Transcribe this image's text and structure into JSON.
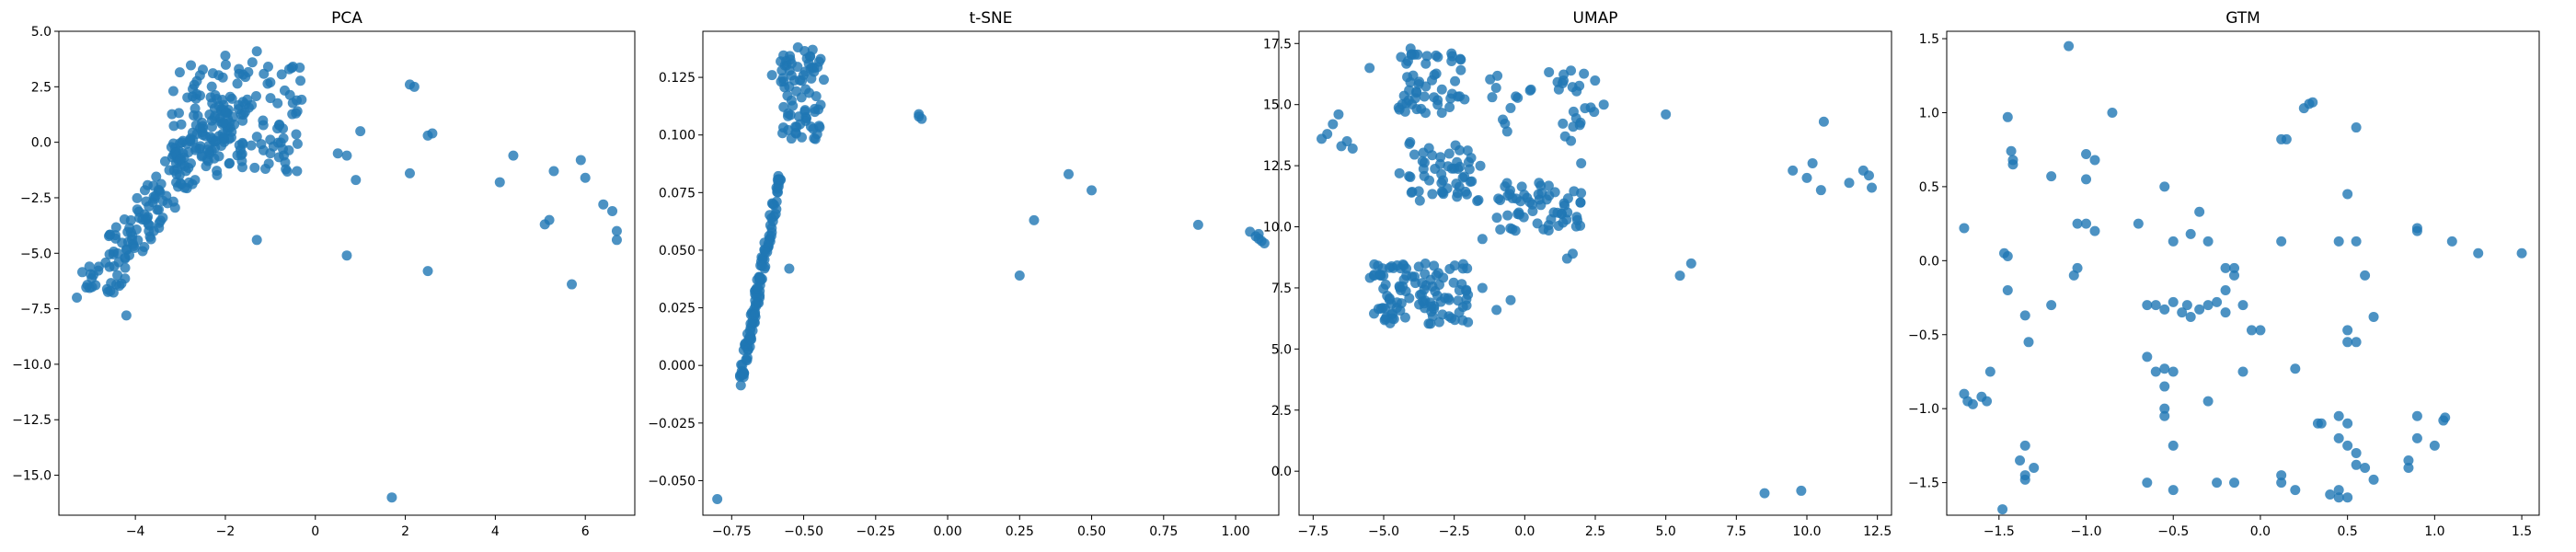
{
  "figure": {
    "background": "#ffffff"
  },
  "chart_data": [
    {
      "type": "scatter",
      "title": "PCA",
      "color": "#1f77b4",
      "xlim": [
        -5.7,
        7.1
      ],
      "ylim": [
        -16.8,
        5.0
      ],
      "xticks": [
        -4,
        -2,
        0,
        2,
        4,
        6
      ],
      "yticks": [
        5.0,
        2.5,
        0.0,
        -2.5,
        -5.0,
        -7.5,
        -10.0,
        -12.5,
        -15.0
      ],
      "yticks_label": [
        "5.0",
        "2.5",
        "0.0",
        "−2.5",
        "−5.0",
        "−7.5",
        "−10.0",
        "−12.5",
        "−15.0"
      ],
      "xticks_label": [
        "−4",
        "−2",
        "0",
        "2",
        "4",
        "6"
      ],
      "clusters": [
        {
          "shape": "band",
          "from": [
            -5.0,
            -6.8
          ],
          "to": [
            -1.8,
            2.0
          ],
          "width": 1.0,
          "n": 190,
          "seed": 11
        },
        {
          "shape": "box",
          "x": [
            -3.2,
            -0.3
          ],
          "y": [
            -1.5,
            3.5
          ],
          "n": 130,
          "seed": 12
        }
      ],
      "points": [
        [
          -2.0,
          3.9
        ],
        [
          -1.3,
          4.1
        ],
        [
          -1.7,
          3.3
        ],
        [
          -1.4,
          3.6
        ],
        [
          -1.0,
          2.7
        ],
        [
          -0.4,
          1.4
        ],
        [
          -0.8,
          0.8
        ],
        [
          0.5,
          -0.5
        ],
        [
          0.7,
          -0.6
        ],
        [
          1.0,
          0.5
        ],
        [
          0.9,
          -1.7
        ],
        [
          2.1,
          2.6
        ],
        [
          2.2,
          2.5
        ],
        [
          2.1,
          -1.4
        ],
        [
          2.5,
          0.3
        ],
        [
          2.6,
          0.4
        ],
        [
          0.7,
          -5.1
        ],
        [
          2.5,
          -5.8
        ],
        [
          -1.3,
          -4.4
        ],
        [
          4.1,
          -1.8
        ],
        [
          4.4,
          -0.6
        ],
        [
          5.1,
          -3.7
        ],
        [
          5.2,
          -3.5
        ],
        [
          5.3,
          -1.3
        ],
        [
          5.9,
          -0.8
        ],
        [
          6.0,
          -1.6
        ],
        [
          5.7,
          -6.4
        ],
        [
          6.4,
          -2.8
        ],
        [
          6.6,
          -3.1
        ],
        [
          6.7,
          -4.0
        ],
        [
          6.7,
          -4.4
        ],
        [
          1.7,
          -16.0
        ],
        [
          -4.2,
          -7.8
        ],
        [
          -5.3,
          -7.0
        ]
      ]
    },
    {
      "type": "scatter",
      "title": "t-SNE",
      "color": "#1f77b4",
      "xlim": [
        -0.85,
        1.15
      ],
      "ylim": [
        -0.065,
        0.145
      ],
      "xticks": [
        -0.75,
        -0.5,
        -0.25,
        0.0,
        0.25,
        0.5,
        0.75,
        1.0
      ],
      "xticks_label": [
        "−0.75",
        "−0.50",
        "−0.25",
        "0.00",
        "0.25",
        "0.50",
        "0.75",
        "1.00"
      ],
      "yticks": [
        0.125,
        0.1,
        0.075,
        0.05,
        0.025,
        0.0,
        -0.025,
        -0.05
      ],
      "yticks_label": [
        "0.125",
        "0.100",
        "0.075",
        "0.050",
        "0.025",
        "0.000",
        "−0.025",
        "−0.050"
      ],
      "clusters": [
        {
          "shape": "band",
          "from": [
            -0.72,
            -0.006
          ],
          "to": [
            -0.58,
            0.082
          ],
          "width": 0.012,
          "n": 120,
          "seed": 21
        },
        {
          "shape": "box",
          "x": [
            -0.58,
            -0.44
          ],
          "y": [
            0.098,
            0.137
          ],
          "n": 75,
          "seed": 22
        }
      ],
      "points": [
        [
          -0.8,
          -0.058
        ],
        [
          -0.55,
          0.042
        ],
        [
          -0.61,
          0.126
        ],
        [
          -0.1,
          0.108
        ],
        [
          -0.09,
          0.107
        ],
        [
          -0.1,
          0.109
        ],
        [
          0.25,
          0.039
        ],
        [
          0.3,
          0.063
        ],
        [
          0.42,
          0.083
        ],
        [
          0.5,
          0.076
        ],
        [
          0.87,
          0.061
        ],
        [
          1.05,
          0.058
        ],
        [
          1.07,
          0.056
        ],
        [
          1.08,
          0.057
        ],
        [
          1.09,
          0.054
        ],
        [
          1.1,
          0.053
        ],
        [
          1.08,
          0.055
        ],
        [
          -0.52,
          0.138
        ],
        [
          -0.43,
          0.124
        ]
      ]
    },
    {
      "type": "scatter",
      "title": "UMAP",
      "color": "#1f77b4",
      "xlim": [
        -8.0,
        13.0
      ],
      "ylim": [
        -1.8,
        18.0
      ],
      "xticks": [
        -7.5,
        -5.0,
        -2.5,
        0.0,
        2.5,
        5.0,
        7.5,
        10.0,
        12.5
      ],
      "xticks_label": [
        "−7.5",
        "−5.0",
        "−2.5",
        "0.0",
        "2.5",
        "5.0",
        "7.5",
        "10.0",
        "12.5"
      ],
      "yticks": [
        17.5,
        15.0,
        12.5,
        10.0,
        7.5,
        5.0,
        2.5,
        0.0
      ],
      "yticks_label": [
        "17.5",
        "15.0",
        "12.5",
        "10.0",
        "7.5",
        "5.0",
        "2.5",
        "0.0"
      ],
      "clusters": [
        {
          "shape": "box",
          "x": [
            -5.5,
            -2.0
          ],
          "y": [
            6.0,
            8.5
          ],
          "n": 110,
          "seed": 31
        },
        {
          "shape": "box",
          "x": [
            -4.5,
            -1.5
          ],
          "y": [
            11.0,
            13.5
          ],
          "n": 55,
          "seed": 32
        },
        {
          "shape": "box",
          "x": [
            -4.5,
            -2.0
          ],
          "y": [
            14.5,
            17.3
          ],
          "n": 55,
          "seed": 33
        },
        {
          "shape": "box",
          "x": [
            -1.0,
            2.0
          ],
          "y": [
            9.8,
            11.8
          ],
          "n": 60,
          "seed": 34
        },
        {
          "shape": "box",
          "x": [
            -1.5,
            2.5
          ],
          "y": [
            13.5,
            16.5
          ],
          "n": 35,
          "seed": 35
        }
      ],
      "points": [
        [
          -7.0,
          13.8
        ],
        [
          -6.8,
          14.2
        ],
        [
          -6.5,
          13.3
        ],
        [
          -6.3,
          13.5
        ],
        [
          -6.1,
          13.2
        ],
        [
          -6.6,
          14.6
        ],
        [
          -5.5,
          16.5
        ],
        [
          -7.2,
          13.6
        ],
        [
          -0.5,
          7.0
        ],
        [
          -1.0,
          6.6
        ],
        [
          -1.5,
          7.5
        ],
        [
          1.5,
          8.7
        ],
        [
          1.7,
          8.9
        ],
        [
          -1.5,
          9.5
        ],
        [
          2.8,
          15.0
        ],
        [
          5.0,
          14.6
        ],
        [
          5.5,
          8.0
        ],
        [
          5.9,
          8.5
        ],
        [
          9.5,
          12.3
        ],
        [
          10.0,
          12.0
        ],
        [
          10.2,
          12.6
        ],
        [
          10.5,
          11.5
        ],
        [
          10.6,
          14.3
        ],
        [
          11.5,
          11.8
        ],
        [
          12.0,
          12.3
        ],
        [
          12.3,
          11.6
        ],
        [
          12.2,
          12.1
        ],
        [
          8.5,
          -0.9
        ],
        [
          9.8,
          -0.8
        ],
        [
          2.0,
          12.6
        ]
      ]
    },
    {
      "type": "scatter",
      "title": "GTM",
      "color": "#1f77b4",
      "xlim": [
        -1.8,
        1.6
      ],
      "ylim": [
        -1.72,
        1.55
      ],
      "xticks": [
        -1.5,
        -1.0,
        -0.5,
        0.0,
        0.5,
        1.0,
        1.5
      ],
      "xticks_label": [
        "−1.5",
        "−1.0",
        "−0.5",
        "0.0",
        "0.5",
        "1.0",
        "1.5"
      ],
      "yticks": [
        1.5,
        1.0,
        0.5,
        0.0,
        -0.5,
        -1.0,
        -1.5
      ],
      "yticks_label": [
        "1.5",
        "1.0",
        "0.5",
        "0.0",
        "−0.5",
        "−1.0",
        "−1.5"
      ],
      "clusters": [],
      "points": [
        [
          -1.1,
          1.45
        ],
        [
          -1.45,
          0.97
        ],
        [
          -1.43,
          0.74
        ],
        [
          -1.42,
          0.68
        ],
        [
          -1.42,
          0.65
        ],
        [
          -1.0,
          0.72
        ],
        [
          -0.95,
          0.68
        ],
        [
          -0.85,
          1.0
        ],
        [
          -1.2,
          0.57
        ],
        [
          -1.0,
          0.55
        ],
        [
          -1.05,
          0.25
        ],
        [
          -1.0,
          0.25
        ],
        [
          -0.95,
          0.2
        ],
        [
          -0.7,
          0.25
        ],
        [
          -0.4,
          0.18
        ],
        [
          -0.35,
          0.33
        ],
        [
          -0.55,
          0.5
        ],
        [
          -1.7,
          0.22
        ],
        [
          -1.47,
          0.05
        ],
        [
          -1.45,
          0.03
        ],
        [
          -1.45,
          -0.2
        ],
        [
          -1.35,
          -0.37
        ],
        [
          -1.2,
          -0.3
        ],
        [
          -1.33,
          -0.55
        ],
        [
          -1.05,
          -0.05
        ],
        [
          -1.07,
          -0.1
        ],
        [
          -1.55,
          -0.75
        ],
        [
          -1.7,
          -0.9
        ],
        [
          -1.68,
          -0.95
        ],
        [
          -1.65,
          -0.97
        ],
        [
          -1.6,
          -0.92
        ],
        [
          -1.57,
          -0.95
        ],
        [
          -1.48,
          -1.68
        ],
        [
          -1.38,
          -1.35
        ],
        [
          -1.35,
          -1.45
        ],
        [
          -1.35,
          -1.48
        ],
        [
          -1.3,
          -1.4
        ],
        [
          -1.35,
          -1.25
        ],
        [
          -0.65,
          -0.3
        ],
        [
          -0.6,
          -0.3
        ],
        [
          -0.55,
          -0.33
        ],
        [
          -0.5,
          -0.28
        ],
        [
          -0.45,
          -0.35
        ],
        [
          -0.42,
          -0.3
        ],
        [
          -0.4,
          -0.38
        ],
        [
          -0.35,
          -0.33
        ],
        [
          -0.3,
          -0.3
        ],
        [
          -0.25,
          -0.28
        ],
        [
          -0.5,
          0.13
        ],
        [
          -0.3,
          0.13
        ],
        [
          -0.2,
          -0.05
        ],
        [
          -0.15,
          -0.1
        ],
        [
          -0.15,
          -0.05
        ],
        [
          -0.2,
          -0.2
        ],
        [
          0.0,
          -0.47
        ],
        [
          -0.05,
          -0.47
        ],
        [
          -0.65,
          -0.65
        ],
        [
          -0.6,
          -0.75
        ],
        [
          -0.55,
          -0.73
        ],
        [
          -0.5,
          -0.75
        ],
        [
          -0.55,
          -0.85
        ],
        [
          -0.55,
          -1.0
        ],
        [
          -0.55,
          -1.05
        ],
        [
          -0.3,
          -0.95
        ],
        [
          -0.1,
          -0.75
        ],
        [
          -0.5,
          -1.25
        ],
        [
          -0.65,
          -1.5
        ],
        [
          -0.5,
          -1.55
        ],
        [
          -0.25,
          -1.5
        ],
        [
          -0.15,
          -1.5
        ],
        [
          0.12,
          0.13
        ],
        [
          0.15,
          0.82
        ],
        [
          0.12,
          0.82
        ],
        [
          0.25,
          1.03
        ],
        [
          0.28,
          1.06
        ],
        [
          0.3,
          1.07
        ],
        [
          0.55,
          0.9
        ],
        [
          0.5,
          0.45
        ],
        [
          0.45,
          0.13
        ],
        [
          0.55,
          0.13
        ],
        [
          0.6,
          -0.1
        ],
        [
          0.65,
          -0.38
        ],
        [
          0.5,
          -0.47
        ],
        [
          0.5,
          -0.55
        ],
        [
          0.55,
          -0.55
        ],
        [
          0.2,
          -0.73
        ],
        [
          0.33,
          -1.1
        ],
        [
          0.35,
          -1.1
        ],
        [
          0.45,
          -1.05
        ],
        [
          0.5,
          -1.1
        ],
        [
          0.45,
          -1.2
        ],
        [
          0.5,
          -1.25
        ],
        [
          0.55,
          -1.3
        ],
        [
          0.55,
          -1.38
        ],
        [
          0.6,
          -1.4
        ],
        [
          0.45,
          -1.55
        ],
        [
          0.5,
          -1.6
        ],
        [
          0.45,
          -1.6
        ],
        [
          0.4,
          -1.58
        ],
        [
          0.65,
          -1.48
        ],
        [
          0.12,
          -1.45
        ],
        [
          0.12,
          -1.5
        ],
        [
          0.2,
          -1.55
        ],
        [
          0.85,
          -1.35
        ],
        [
          0.85,
          -1.4
        ],
        [
          0.9,
          -1.2
        ],
        [
          0.9,
          -1.05
        ],
        [
          1.0,
          -1.25
        ],
        [
          1.05,
          -1.08
        ],
        [
          1.06,
          -1.06
        ],
        [
          0.9,
          0.22
        ],
        [
          0.9,
          0.2
        ],
        [
          1.1,
          0.13
        ],
        [
          1.25,
          0.05
        ],
        [
          1.5,
          0.05
        ],
        [
          -0.2,
          -0.35
        ],
        [
          -0.1,
          -0.3
        ]
      ]
    }
  ]
}
